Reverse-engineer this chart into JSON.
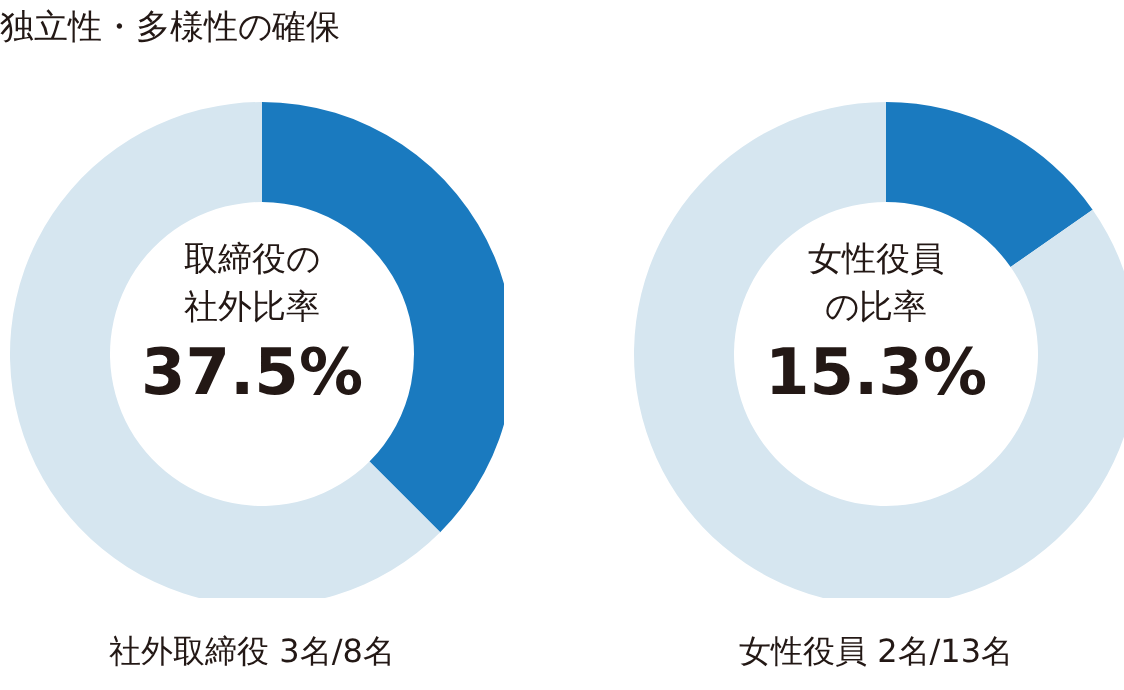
{
  "chart_data": [
    {
      "type": "donut",
      "title": "独立性・多様性の確保",
      "categories": [
        null,
        null
      ],
      "values": [
        37.5,
        62.5
      ],
      "colors": [
        "#1a7abf",
        "#d6e6f0"
      ],
      "annotations": [
        "取締役の社外比率",
        "37.5%",
        "社外取締役 3名/8名"
      ]
    },
    {
      "type": "donut",
      "categories": [
        null,
        null
      ],
      "values": [
        15.3,
        84.7
      ],
      "colors": [
        "#1a7abf",
        "#d6e6f0"
      ],
      "annotations": [
        "女性役員の比率",
        "15.3%",
        "女性役員 2名/13名"
      ]
    }
  ]
}
